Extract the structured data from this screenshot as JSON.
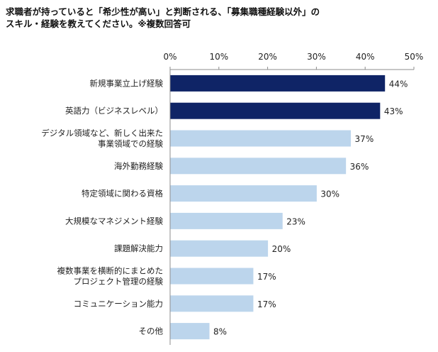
{
  "title_lines": [
    "求職者が持っていると「希少性が高い」と判断される、「募集職種経験以外」の",
    "スキル・経験を教えてください。※複数回答可"
  ],
  "chart_data": {
    "type": "bar",
    "orientation": "horizontal",
    "title": "求職者が持っていると「希少性が高い」と判断される、「募集職種経験以外」の スキル・経験を教えてください。※複数回答可",
    "categories": [
      [
        "新規事業立上げ経験"
      ],
      [
        "英語力（ビジネスレベル）"
      ],
      [
        "デジタル領域など、新しく出来た",
        "事業領域での経験"
      ],
      [
        "海外勤務経験"
      ],
      [
        "特定領域に関わる資格"
      ],
      [
        "大規模なマネジメント経験"
      ],
      [
        "課題解決能力"
      ],
      [
        "複数事業を横断的にまとめた",
        "プロジェクト管理の経験"
      ],
      [
        "コミュニケーション能力"
      ],
      [
        "その他"
      ]
    ],
    "values": [
      44,
      43,
      37,
      36,
      30,
      23,
      20,
      17,
      17,
      8
    ],
    "value_labels": [
      "44%",
      "43%",
      "37%",
      "36%",
      "30%",
      "23%",
      "20%",
      "17%",
      "17%",
      "8%"
    ],
    "xlim": [
      0,
      50
    ],
    "xticks": [
      0,
      10,
      20,
      30,
      40,
      50
    ],
    "xtick_labels": [
      "0%",
      "10%",
      "20%",
      "30%",
      "40%",
      "50%"
    ],
    "axis_position": "top",
    "grid": false,
    "legend": "none",
    "highlight_count": 2,
    "colors": {
      "highlight": "#0f2466",
      "normal": "#bcd5ec",
      "axis": "#8c8c8c"
    }
  }
}
